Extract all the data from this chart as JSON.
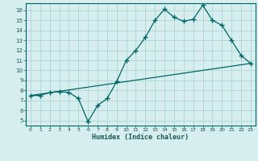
{
  "title": "",
  "xlabel": "Humidex (Indice chaleur)",
  "background_color": "#d6eeee",
  "grid_color": "#b0d4d4",
  "line_color": "#006666",
  "xlim": [
    -0.5,
    23.5
  ],
  "ylim": [
    4.5,
    16.7
  ],
  "xticks": [
    0,
    1,
    2,
    3,
    4,
    5,
    6,
    7,
    8,
    9,
    10,
    11,
    12,
    13,
    14,
    15,
    16,
    17,
    18,
    19,
    20,
    21,
    22,
    23
  ],
  "yticks": [
    5,
    6,
    7,
    8,
    9,
    10,
    11,
    12,
    13,
    14,
    15,
    16
  ],
  "curve1_x": [
    0,
    1,
    2,
    3,
    4,
    5,
    6,
    7,
    8,
    9,
    10,
    11,
    12,
    13,
    14,
    15,
    16,
    17,
    18,
    19,
    20,
    21,
    22,
    23
  ],
  "curve1_y": [
    7.5,
    7.5,
    7.8,
    7.9,
    7.8,
    7.2,
    4.9,
    6.5,
    7.2,
    8.9,
    11.0,
    12.0,
    13.3,
    15.0,
    16.1,
    15.3,
    14.9,
    15.1,
    16.5,
    15.0,
    14.5,
    13.0,
    11.5,
    10.7
  ],
  "trend_x": [
    0,
    23
  ],
  "trend_y": [
    7.5,
    10.7
  ]
}
